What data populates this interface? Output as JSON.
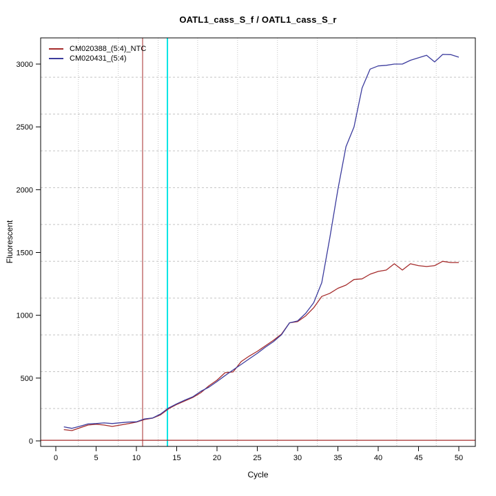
{
  "window": {
    "background": "#ffffff"
  },
  "chart_data": {
    "type": "line",
    "title": "OATL1_cass_S_f / OATL1_cass_S_r",
    "xlabel": "Cycle",
    "ylabel": "Fluorescent",
    "x_ticks": [
      0,
      5,
      10,
      15,
      20,
      25,
      30,
      35,
      40,
      45,
      50
    ],
    "y_ticks": [
      0,
      500,
      1000,
      1500,
      2000,
      2500,
      3000
    ],
    "xlim": [
      -1.9,
      52.1
    ],
    "ylim": [
      -45,
      3210
    ],
    "grid": {
      "color": "#c3c3c3",
      "h_values": [
        258,
        551,
        844,
        1137,
        1430,
        1723,
        2016,
        2309,
        2602,
        2895
      ],
      "v_values": [
        2.8,
        7.75,
        12.7,
        17.6,
        22.55,
        27.5,
        32.45,
        37.35,
        42.3,
        47.2
      ]
    },
    "annotations": {
      "h_line": {
        "y": 5,
        "color": "#A52A2A"
      },
      "v_lines": [
        {
          "x": 10.77,
          "color": "#A52A2A"
        },
        {
          "x": 13.85,
          "color": "#00E5E5"
        }
      ]
    },
    "x": [
      1,
      2,
      3,
      4,
      5,
      6,
      7,
      8,
      9,
      10,
      11,
      12,
      13,
      14,
      15,
      16,
      17,
      18,
      19,
      20,
      21,
      22,
      23,
      24,
      25,
      26,
      27,
      28,
      29,
      30,
      31,
      32,
      33,
      34,
      35,
      36,
      37,
      38,
      39,
      40,
      41,
      42,
      43,
      44,
      45,
      46,
      47,
      48,
      49,
      50
    ],
    "series": [
      {
        "name": "CM020388_(5:4)_NTC",
        "color": "#A52A2A",
        "values": [
          90,
          82,
          104,
          126,
          132,
          126,
          115,
          126,
          137,
          150,
          170,
          181,
          208,
          256,
          290,
          318,
          346,
          384,
          439,
          483,
          543,
          549,
          631,
          675,
          713,
          757,
          801,
          850,
          940,
          950,
          995,
          1060,
          1150,
          1175,
          1215,
          1240,
          1285,
          1290,
          1327,
          1349,
          1360,
          1410,
          1360,
          1410,
          1395,
          1388,
          1395,
          1430,
          1420,
          1420
        ]
      },
      {
        "name": "CM020431_(5:4)",
        "color": "#3B3B9D",
        "values": [
          112,
          100,
          116,
          135,
          138,
          143,
          138,
          144,
          150,
          152,
          175,
          182,
          214,
          262,
          295,
          324,
          351,
          395,
          428,
          472,
          520,
          565,
          609,
          653,
          697,
          746,
          790,
          845,
          940,
          955,
          1015,
          1100,
          1260,
          1618,
          2002,
          2342,
          2500,
          2810,
          2960,
          2985,
          2990,
          3000,
          3000,
          3030,
          3050,
          3070,
          3017,
          3077,
          3075,
          3055
        ]
      }
    ],
    "legend": {
      "position": "top-left"
    }
  }
}
